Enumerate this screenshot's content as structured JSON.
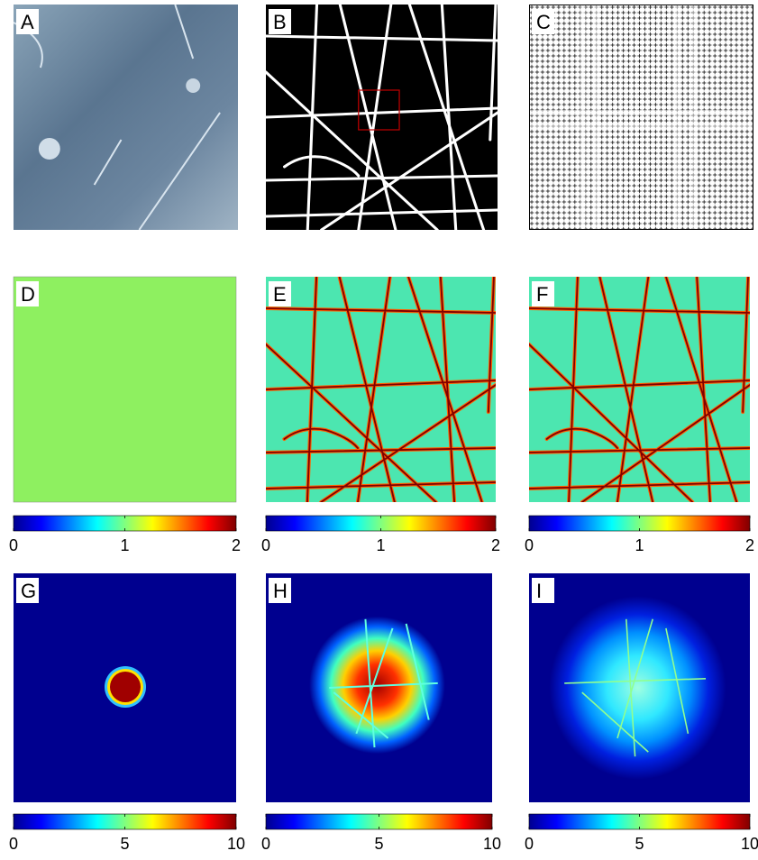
{
  "panels": [
    {
      "label": "A"
    },
    {
      "label": "B"
    },
    {
      "label": "C"
    },
    {
      "label": "D"
    },
    {
      "label": "E"
    },
    {
      "label": "F"
    },
    {
      "label": "G"
    },
    {
      "label": "H"
    },
    {
      "label": "I"
    }
  ],
  "colorbars": [
    {
      "lim": [
        0,
        2
      ],
      "ticks": [
        0,
        1,
        2
      ]
    },
    {
      "lim": [
        0,
        2
      ],
      "ticks": [
        0,
        1,
        2
      ]
    },
    {
      "lim": [
        0,
        2
      ],
      "ticks": [
        0,
        1,
        2
      ]
    },
    {
      "lim": [
        0,
        10
      ],
      "ticks": [
        0,
        5,
        10
      ]
    },
    {
      "lim": [
        0,
        10
      ],
      "ticks": [
        0,
        5,
        10
      ]
    },
    {
      "lim": [
        0,
        10
      ],
      "ticks": [
        0,
        5,
        10
      ]
    }
  ]
}
